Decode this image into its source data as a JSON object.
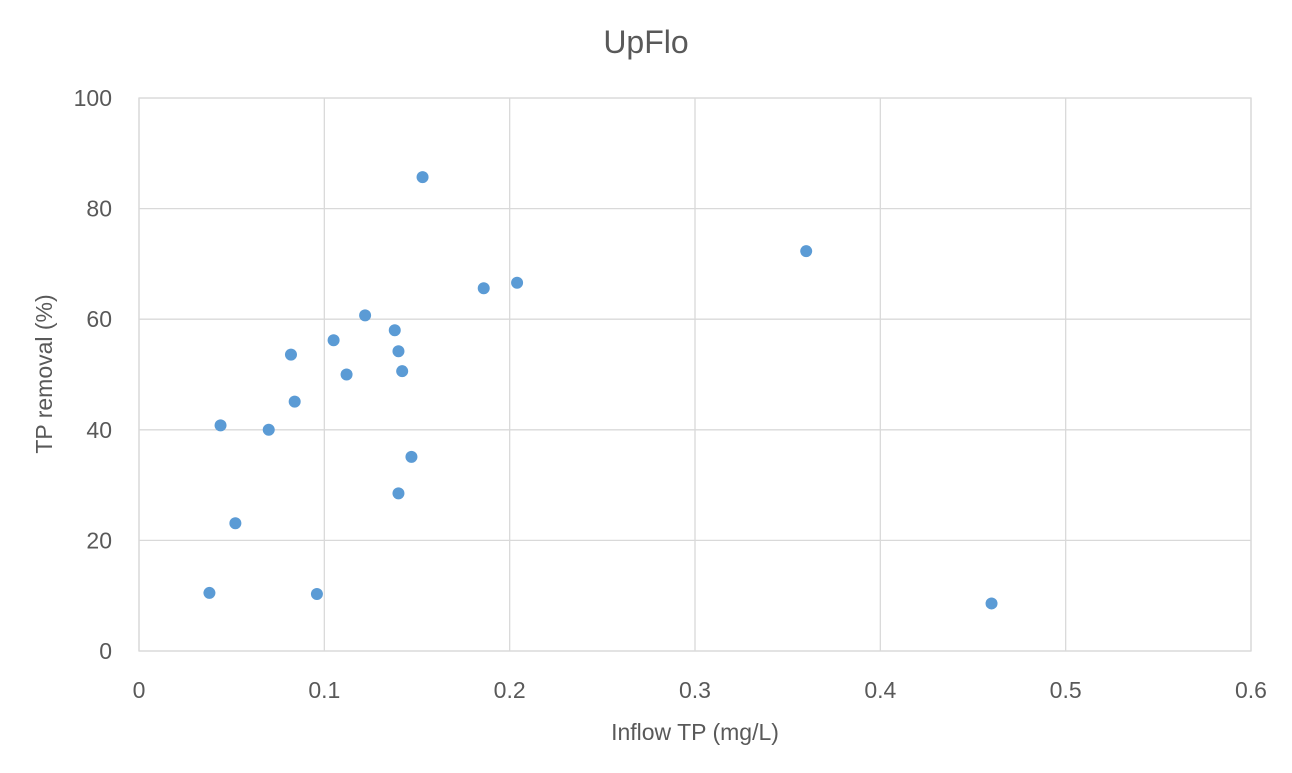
{
  "chart_data": {
    "type": "scatter",
    "title": "UpFlo",
    "xlabel": "Inflow TP (mg/L)",
    "ylabel": "TP removal (%)",
    "xlim": [
      0,
      0.6
    ],
    "ylim": [
      0,
      100
    ],
    "x_ticks": [
      "0",
      "0.1",
      "0.2",
      "0.3",
      "0.4",
      "0.5",
      "0.6"
    ],
    "y_ticks": [
      "0",
      "20",
      "40",
      "60",
      "80",
      "100"
    ],
    "grid": true,
    "legend": "none",
    "marker_color": "#5b9bd5",
    "series": [
      {
        "points": [
          {
            "x": 0.038,
            "y": 10.5
          },
          {
            "x": 0.044,
            "y": 40.8
          },
          {
            "x": 0.052,
            "y": 23.1
          },
          {
            "x": 0.07,
            "y": 40.0
          },
          {
            "x": 0.082,
            "y": 53.6
          },
          {
            "x": 0.084,
            "y": 45.1
          },
          {
            "x": 0.096,
            "y": 10.3
          },
          {
            "x": 0.105,
            "y": 56.2
          },
          {
            "x": 0.112,
            "y": 50.0
          },
          {
            "x": 0.122,
            "y": 60.7
          },
          {
            "x": 0.138,
            "y": 58.0
          },
          {
            "x": 0.14,
            "y": 54.2
          },
          {
            "x": 0.14,
            "y": 28.5
          },
          {
            "x": 0.142,
            "y": 50.6
          },
          {
            "x": 0.147,
            "y": 35.1
          },
          {
            "x": 0.153,
            "y": 85.7
          },
          {
            "x": 0.186,
            "y": 65.6
          },
          {
            "x": 0.204,
            "y": 66.6
          },
          {
            "x": 0.36,
            "y": 72.3
          },
          {
            "x": 0.46,
            "y": 8.6
          }
        ]
      }
    ]
  }
}
